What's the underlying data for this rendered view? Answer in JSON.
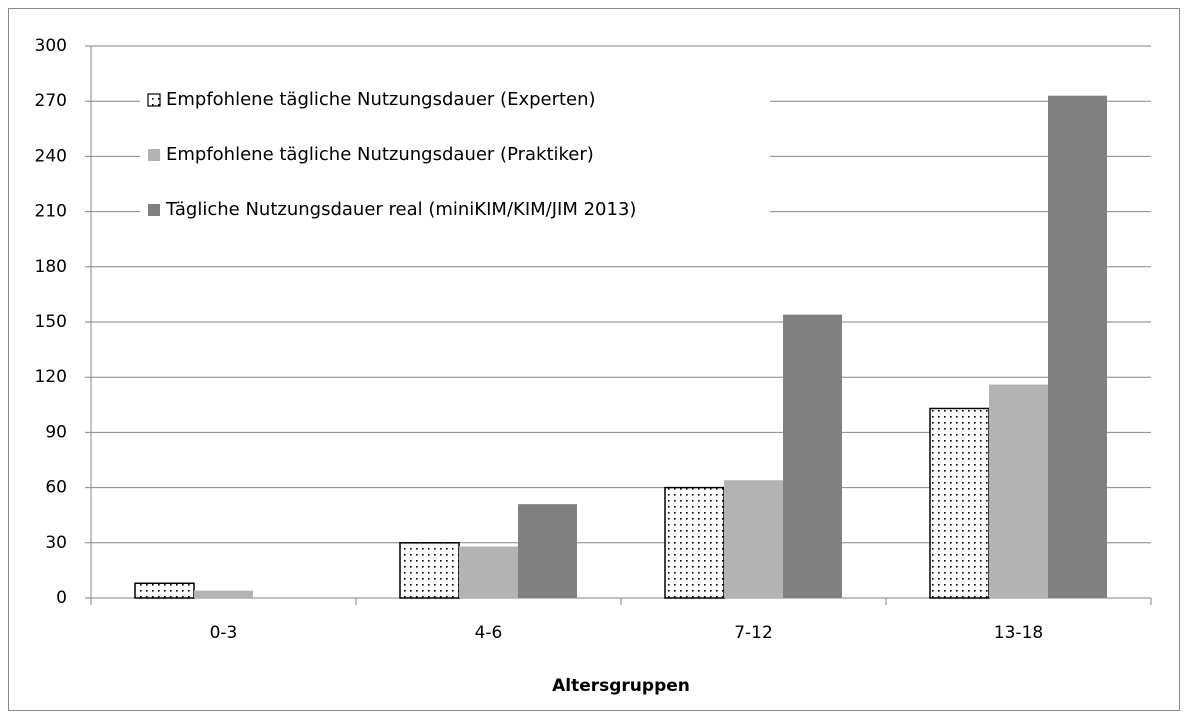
{
  "chart_data": {
    "type": "bar",
    "xlabel": "Altersgruppen",
    "categories": [
      "0-3",
      "4-6",
      "7-12",
      "13-18"
    ],
    "series": [
      {
        "name": "Empfohlene tägliche Nutzungsdauer (Experten)",
        "color": "#000000",
        "pattern": "dotted",
        "values": [
          8,
          30,
          60,
          103
        ]
      },
      {
        "name": "Empfohlene tägliche Nutzungsdauer (Praktiker)",
        "color": "#b3b3b3",
        "values": [
          4,
          28,
          64,
          116
        ]
      },
      {
        "name": "Tägliche Nutzungsdauer real (miniKIM/KIM/JIM 2013)",
        "color": "#808080",
        "values": [
          null,
          51,
          154,
          273
        ]
      }
    ],
    "ylim": [
      0,
      300
    ],
    "yticks": [
      0,
      30,
      60,
      90,
      120,
      150,
      180,
      210,
      240,
      270,
      300
    ],
    "grid": true,
    "legend": "top-left"
  }
}
